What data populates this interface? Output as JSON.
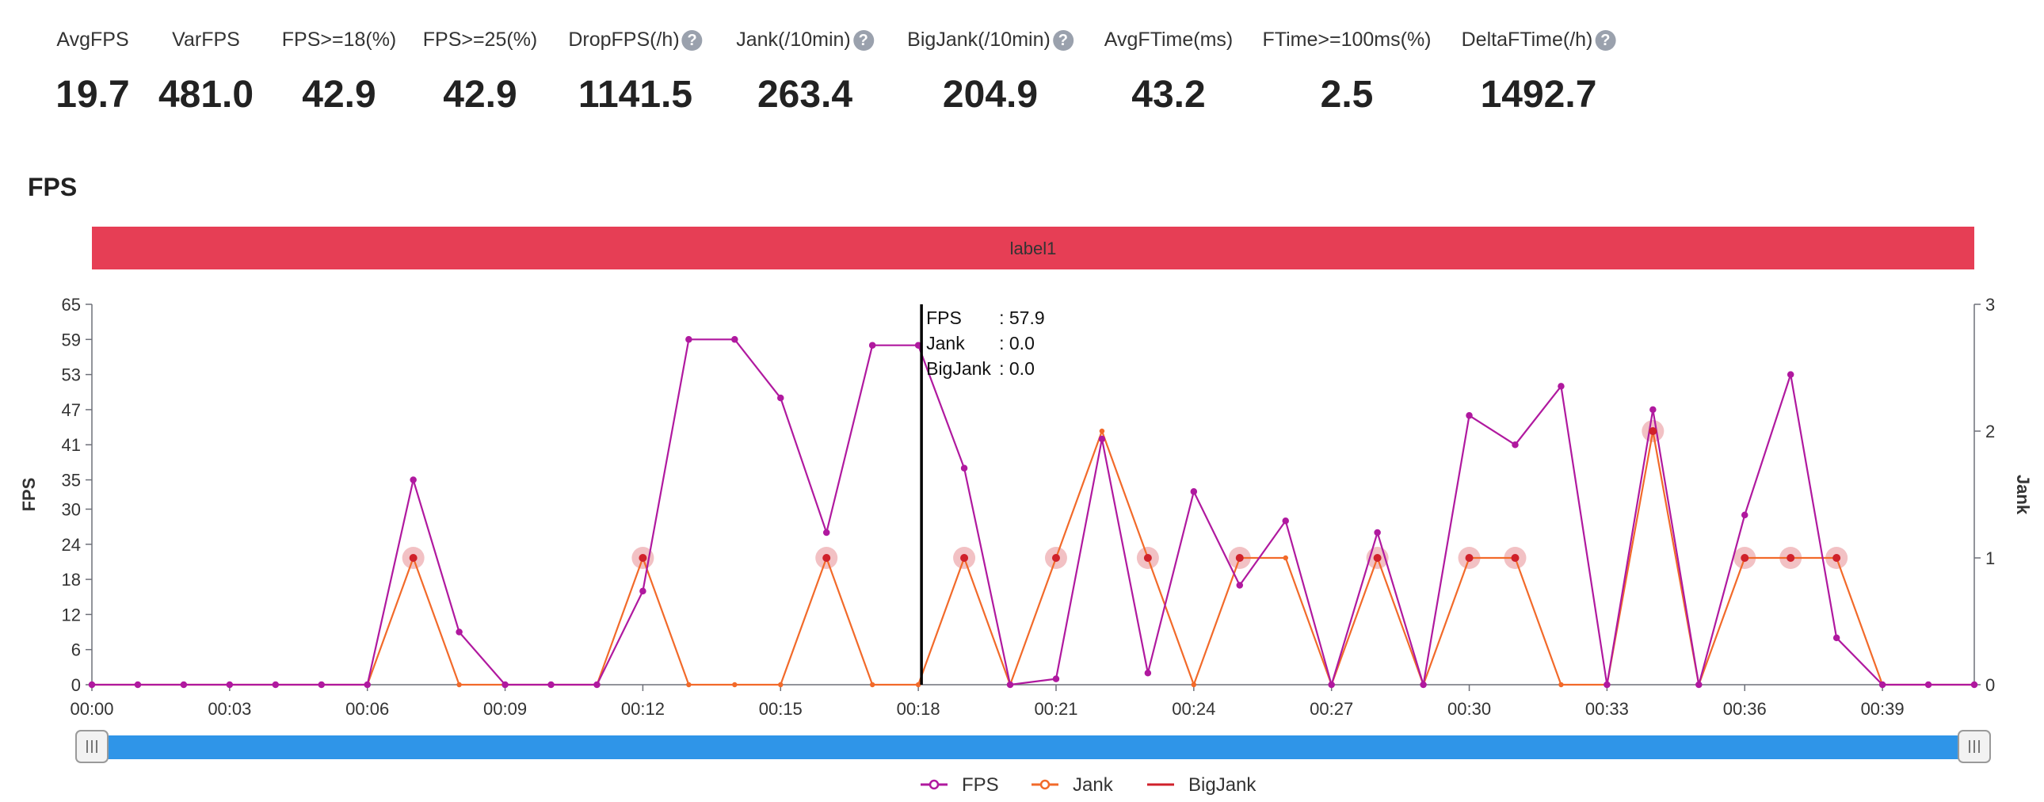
{
  "metrics": [
    {
      "label": "AvgFPS",
      "value": "19.7",
      "help": false
    },
    {
      "label": "VarFPS",
      "value": "481.0",
      "help": false
    },
    {
      "label": "FPS>=18(%)",
      "value": "42.9",
      "help": false
    },
    {
      "label": "FPS>=25(%)",
      "value": "42.9",
      "help": false
    },
    {
      "label": "DropFPS(/h)",
      "value": "1141.5",
      "help": true
    },
    {
      "label": "Jank(/10min)",
      "value": "263.4",
      "help": true
    },
    {
      "label": "BigJank(/10min)",
      "value": "204.9",
      "help": true
    },
    {
      "label": "AvgFTime(ms)",
      "value": "43.2",
      "help": false
    },
    {
      "label": "FTime>=100ms(%)",
      "value": "2.5",
      "help": false
    },
    {
      "label": "DeltaFTime(/h)",
      "value": "1492.7",
      "help": true
    }
  ],
  "help_glyph": "?",
  "chart_title": "FPS",
  "label_band": "label1",
  "colors": {
    "fps": "#b0199f",
    "jank": "#f26a2a",
    "bigjank": "#d0212b",
    "band": "#e63e55",
    "slider": "#2f95e8"
  },
  "chart_data": {
    "type": "line",
    "title": "FPS",
    "x": [
      "00:00",
      "00:01",
      "00:02",
      "00:03",
      "00:04",
      "00:05",
      "00:06",
      "00:07",
      "00:08",
      "00:09",
      "00:10",
      "00:11",
      "00:12",
      "00:13",
      "00:14",
      "00:15",
      "00:16",
      "00:17",
      "00:18",
      "00:19",
      "00:20",
      "00:21",
      "00:22",
      "00:23",
      "00:24",
      "00:25",
      "00:26",
      "00:27",
      "00:28",
      "00:29",
      "00:30",
      "00:31",
      "00:32",
      "00:33",
      "00:34",
      "00:35",
      "00:36",
      "00:37",
      "00:38",
      "00:39",
      "00:40",
      "00:41"
    ],
    "x_tick_labels": [
      "00:00",
      "00:03",
      "00:06",
      "00:09",
      "00:12",
      "00:15",
      "00:18",
      "00:21",
      "00:24",
      "00:27",
      "00:30",
      "00:33",
      "00:36",
      "00:39"
    ],
    "ylabel_left": "FPS",
    "ylabel_right": "Jank",
    "y_left_ticks": [
      "0",
      "6",
      "12",
      "18",
      "24",
      "30",
      "35",
      "41",
      "47",
      "53",
      "59",
      "65"
    ],
    "y_right_ticks": [
      "0",
      "1",
      "2",
      "3"
    ],
    "ylim_left": [
      0,
      65
    ],
    "ylim_right": [
      0,
      3
    ],
    "series": [
      {
        "name": "FPS",
        "axis": "left",
        "values": [
          0,
          0,
          0,
          0,
          0,
          0,
          0,
          35,
          9,
          0,
          0,
          0,
          16,
          59,
          59,
          49,
          26,
          58,
          58,
          37,
          0,
          1,
          42,
          2,
          33,
          17,
          28,
          0,
          26,
          0,
          46,
          41,
          51,
          0,
          47,
          0,
          29,
          53,
          8,
          0,
          0,
          0
        ]
      },
      {
        "name": "Jank",
        "axis": "right",
        "values": [
          0,
          0,
          0,
          0,
          0,
          0,
          0,
          1,
          0,
          0,
          0,
          0,
          1,
          0,
          0,
          0,
          1,
          0,
          0,
          1,
          0,
          1,
          2,
          1,
          0,
          1,
          1,
          0,
          1,
          0,
          1,
          1,
          0,
          0,
          2,
          0,
          1,
          1,
          1,
          0,
          0,
          0
        ]
      },
      {
        "name": "BigJank",
        "axis": "right",
        "values": [
          0,
          0,
          0,
          0,
          0,
          0,
          0,
          1,
          0,
          0,
          0,
          0,
          1,
          0,
          0,
          0,
          1,
          0,
          0,
          1,
          0,
          1,
          0,
          1,
          0,
          1,
          0,
          0,
          1,
          0,
          1,
          1,
          0,
          0,
          2,
          0,
          1,
          1,
          1,
          0,
          0,
          0
        ]
      }
    ],
    "tooltip": {
      "index": 18,
      "lines": [
        {
          "label": "FPS      ",
          "value": ": 57.9"
        },
        {
          "label": "Jank     ",
          "value": ": 0.0"
        },
        {
          "label": "BigJank",
          "value": ": 0.0"
        }
      ]
    },
    "legend": [
      "FPS",
      "Jank",
      "BigJank"
    ],
    "legend_position": "bottom-center",
    "grid": false
  }
}
